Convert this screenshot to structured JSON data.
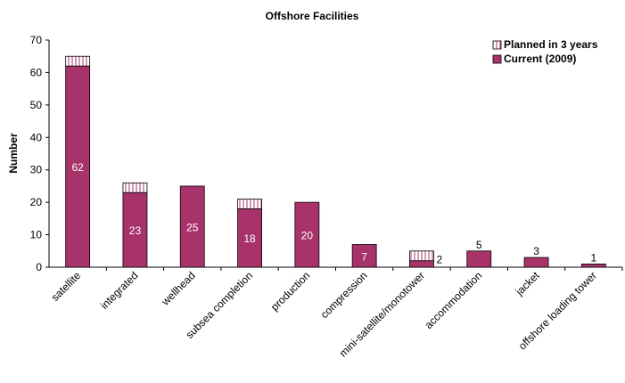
{
  "chart_data": {
    "type": "stacked-bar",
    "title": "Offshore Facilities",
    "y_label": "Number",
    "categories": [
      "satellite",
      "integrated",
      "wellhead",
      "subsea completion",
      "production",
      "compression",
      "mini-satellite/monotower",
      "accommodation",
      "jacket",
      "offshore loading tower"
    ],
    "series": [
      {
        "name": "Current (2009)",
        "color": "#a8336a",
        "fill": "solid",
        "values": [
          62,
          23,
          25,
          18,
          20,
          7,
          2,
          5,
          3,
          1
        ],
        "show_labels": true
      },
      {
        "name": "Planned in 3 years",
        "color": "#a8336a",
        "fill": "vertical-stripes",
        "values": [
          3,
          3,
          0,
          3,
          0,
          0,
          3,
          0,
          0,
          0
        ],
        "show_labels": false
      }
    ],
    "ylim": [
      0,
      70
    ],
    "yticks": [
      0,
      10,
      20,
      30,
      40,
      50,
      60,
      70
    ],
    "legend": "top-right"
  }
}
